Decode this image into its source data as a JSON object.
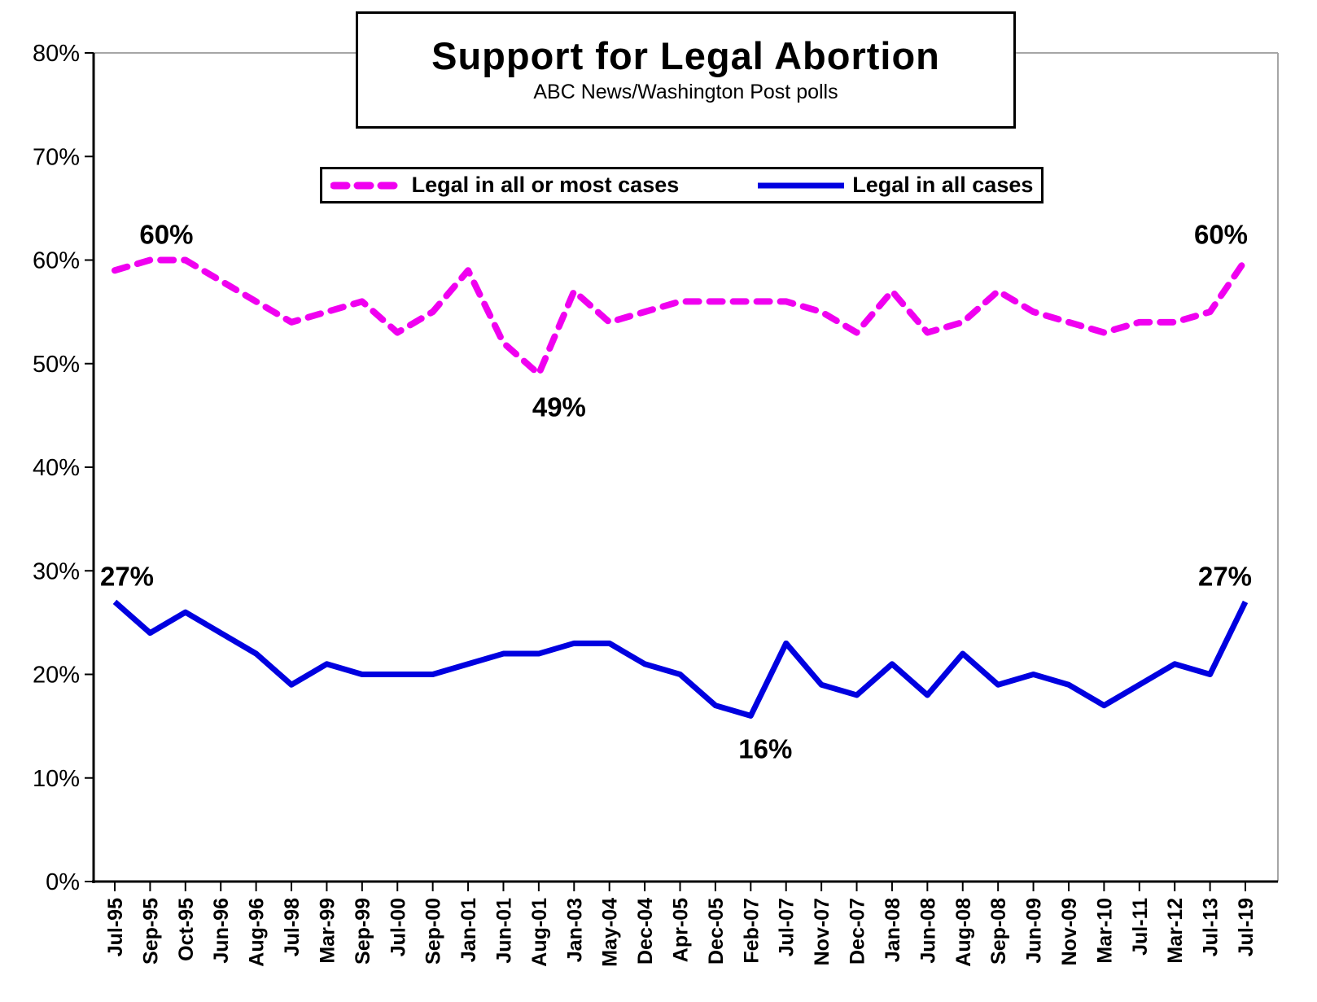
{
  "title_box": {
    "title": "Support for Legal Abortion",
    "subtitle": "ABC News/Washington Post polls"
  },
  "legend": {
    "entries": [
      {
        "label": "Legal in all or most cases",
        "color": "#F000F0",
        "style": "dashed"
      },
      {
        "label": "Legal in all cases",
        "color": "#0000E0",
        "style": "solid"
      }
    ]
  },
  "chart_data": {
    "type": "line",
    "title": "Support for Legal Abortion",
    "subtitle": "ABC News/Washington Post polls",
    "categories": [
      "Jul-95",
      "Sep-95",
      "Oct-95",
      "Jun-96",
      "Aug-96",
      "Jul-98",
      "Mar-99",
      "Sep-99",
      "Jul-00",
      "Sep-00",
      "Jan-01",
      "Jun-01",
      "Aug-01",
      "Jan-03",
      "May-04",
      "Dec-04",
      "Apr-05",
      "Dec-05",
      "Feb-07",
      "Jul-07",
      "Nov-07",
      "Dec-07",
      "Jan-08",
      "Jun-08",
      "Aug-08",
      "Sep-08",
      "Jun-09",
      "Nov-09",
      "Mar-10",
      "Jul-11",
      "Mar-12",
      "Jul-13",
      "Jul-19"
    ],
    "series": [
      {
        "name": "Legal in all or most cases",
        "color": "#F000F0",
        "dashed": true,
        "values": [
          59,
          60,
          60,
          58,
          56,
          54,
          55,
          56,
          53,
          55,
          59,
          52,
          49,
          57,
          54,
          55,
          56,
          56,
          56,
          56,
          55,
          53,
          57,
          53,
          54,
          57,
          55,
          54,
          53,
          54,
          54,
          55,
          60
        ]
      },
      {
        "name": "Legal in all cases",
        "color": "#0000E0",
        "dashed": false,
        "values": [
          27,
          24,
          26,
          24,
          22,
          19,
          21,
          20,
          20,
          20,
          21,
          22,
          22,
          23,
          23,
          21,
          20,
          17,
          16,
          23,
          19,
          18,
          21,
          18,
          22,
          19,
          20,
          19,
          17,
          19,
          21,
          20,
          27
        ]
      }
    ],
    "xlabel": "",
    "ylabel": "",
    "ylim": [
      0,
      80
    ],
    "y_ticks": [
      0,
      10,
      20,
      30,
      40,
      50,
      60,
      70,
      80
    ],
    "y_tick_suffix": "%",
    "grid": "off",
    "legend_position": "top",
    "annotations": [
      {
        "text": "60%",
        "series": 0,
        "index": 1,
        "placement": "above",
        "dx": 20
      },
      {
        "text": "49%",
        "series": 0,
        "index": 12,
        "placement": "below",
        "dx": 25
      },
      {
        "text": "60%",
        "series": 0,
        "index": 32,
        "placement": "above",
        "dx": -30
      },
      {
        "text": "27%",
        "series": 1,
        "index": 0,
        "placement": "above",
        "dx": 15
      },
      {
        "text": "16%",
        "series": 1,
        "index": 18,
        "placement": "below",
        "dx": 18
      },
      {
        "text": "27%",
        "series": 1,
        "index": 32,
        "placement": "above",
        "dx": -25
      }
    ]
  },
  "style": {
    "axis_color": "#000000",
    "plot_border_color": "#A6A6A6",
    "text_color": "#000000"
  }
}
